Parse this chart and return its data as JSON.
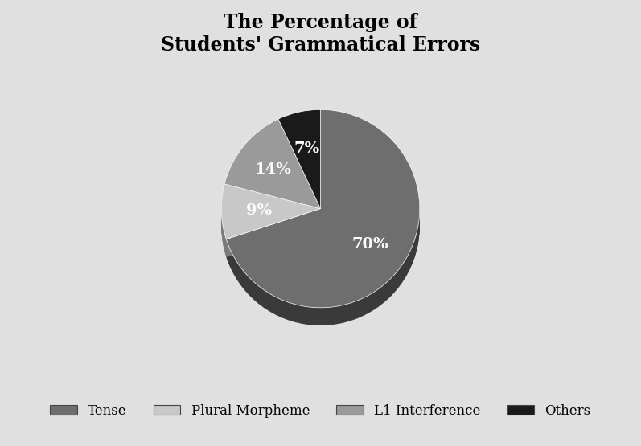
{
  "title": "The Percentage of\nStudents' Grammatical Errors",
  "slices": [
    70,
    9,
    14,
    7
  ],
  "labels": [
    "Tense",
    "Plural Morpheme",
    "L1 Interference",
    "Others"
  ],
  "colors": [
    "#6e6e6e",
    "#c8c8c8",
    "#9a9a9a",
    "#1a1a1a"
  ],
  "dark_colors": [
    "#3a3a3a",
    "#7a7a7a",
    "#555555",
    "#0a0a0a"
  ],
  "pct_labels": [
    "70%",
    "9%",
    "14%",
    "7%"
  ],
  "background_color": "#e0e0e0",
  "title_fontsize": 17,
  "legend_fontsize": 12,
  "pct_fontsize": 14,
  "start_angle": 90
}
